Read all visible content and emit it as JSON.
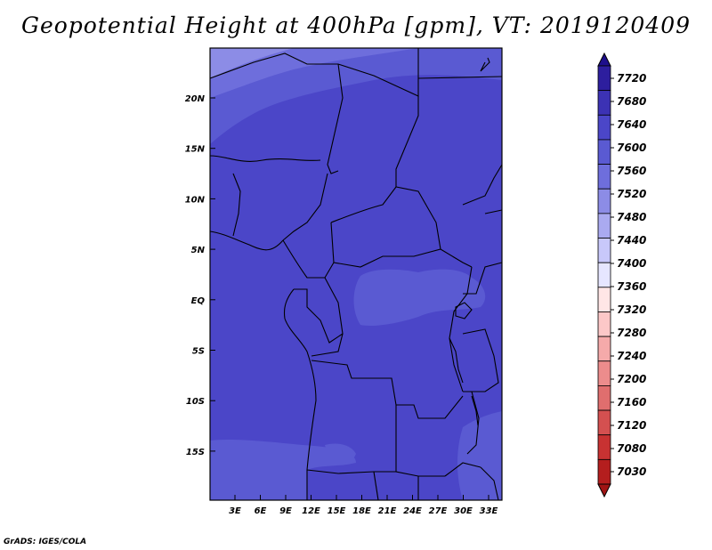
{
  "title": "Geopotential Height at 400hPa [gpm], VT: 2019120409",
  "credit": "GrADS: IGES/COLA",
  "map": {
    "lat_labels": [
      "20N",
      "15N",
      "10N",
      "5N",
      "EQ",
      "5S",
      "10S",
      "15S"
    ],
    "lon_labels": [
      "3E",
      "6E",
      "9E",
      "12E",
      "15E",
      "18E",
      "21E",
      "24E",
      "27E",
      "30E",
      "33E"
    ]
  },
  "colorbar": {
    "levels": [
      "7720",
      "7680",
      "7640",
      "7600",
      "7560",
      "7520",
      "7480",
      "7440",
      "7400",
      "7360",
      "7320",
      "7280",
      "7240",
      "7200",
      "7160",
      "7120",
      "7080",
      "7030"
    ],
    "colors": [
      "#1e0f8c",
      "#2d1e9e",
      "#3c32b4",
      "#4b46c8",
      "#5a5ad2",
      "#6e6edc",
      "#8c8ce6",
      "#aaaaf0",
      "#c8c8fa",
      "#e6e6ff",
      "#ffe6e6",
      "#fcc8c8",
      "#f5aaaa",
      "#ec8c8c",
      "#e06e6e",
      "#d45050",
      "#c83232",
      "#b41e1e",
      "#a01414"
    ]
  },
  "field_colors": {
    "main": "#4b46c8",
    "light": "#5a5ad2",
    "lighter": "#6e6edc",
    "lightest": "#8c8ce6",
    "ocean_edge": "#5a5ad2"
  }
}
